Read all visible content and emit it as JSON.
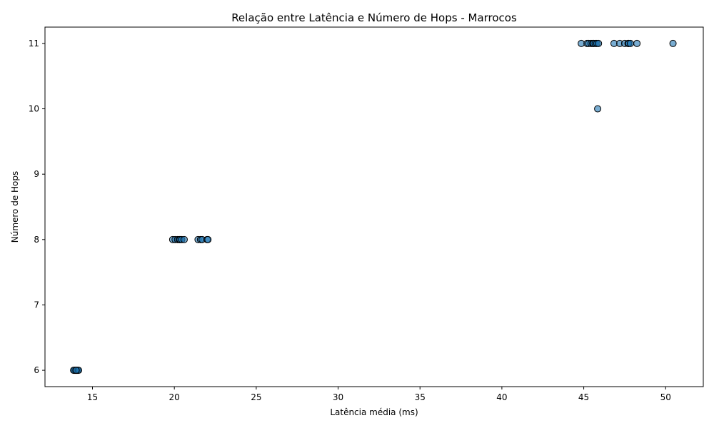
{
  "chart_data": {
    "type": "scatter",
    "title": "Relação entre Latência e Número de Hops - Marrocos",
    "xlabel": "Latência média (ms)",
    "ylabel": "Número de Hops",
    "xlim": [
      12.1,
      52.3
    ],
    "ylim": [
      5.75,
      11.25
    ],
    "xticks": [
      15,
      20,
      25,
      30,
      35,
      40,
      45,
      50
    ],
    "yticks": [
      6,
      7,
      8,
      9,
      10,
      11
    ],
    "grid": false,
    "legend": "none",
    "point_color": "#1f77b4",
    "edge_color": "#000000",
    "points": [
      {
        "x": 13.9,
        "y": 6
      },
      {
        "x": 13.95,
        "y": 6
      },
      {
        "x": 14.0,
        "y": 6
      },
      {
        "x": 14.05,
        "y": 6
      },
      {
        "x": 14.1,
        "y": 6
      },
      {
        "x": 13.85,
        "y": 6
      },
      {
        "x": 14.15,
        "y": 6
      },
      {
        "x": 14.0,
        "y": 6
      },
      {
        "x": 19.9,
        "y": 8
      },
      {
        "x": 20.05,
        "y": 8
      },
      {
        "x": 20.2,
        "y": 8
      },
      {
        "x": 20.3,
        "y": 8
      },
      {
        "x": 20.35,
        "y": 8
      },
      {
        "x": 20.45,
        "y": 8
      },
      {
        "x": 20.6,
        "y": 8
      },
      {
        "x": 21.45,
        "y": 8
      },
      {
        "x": 21.6,
        "y": 8
      },
      {
        "x": 21.7,
        "y": 8
      },
      {
        "x": 22.0,
        "y": 8
      },
      {
        "x": 22.05,
        "y": 8
      },
      {
        "x": 45.85,
        "y": 10
      },
      {
        "x": 44.85,
        "y": 11
      },
      {
        "x": 45.2,
        "y": 11
      },
      {
        "x": 45.3,
        "y": 11
      },
      {
        "x": 45.45,
        "y": 11
      },
      {
        "x": 45.55,
        "y": 11
      },
      {
        "x": 45.6,
        "y": 11
      },
      {
        "x": 45.7,
        "y": 11
      },
      {
        "x": 45.8,
        "y": 11
      },
      {
        "x": 45.9,
        "y": 11
      },
      {
        "x": 46.85,
        "y": 11
      },
      {
        "x": 47.2,
        "y": 11
      },
      {
        "x": 47.5,
        "y": 11
      },
      {
        "x": 47.7,
        "y": 11
      },
      {
        "x": 47.75,
        "y": 11
      },
      {
        "x": 47.85,
        "y": 11
      },
      {
        "x": 48.25,
        "y": 11
      },
      {
        "x": 50.45,
        "y": 11
      }
    ]
  }
}
